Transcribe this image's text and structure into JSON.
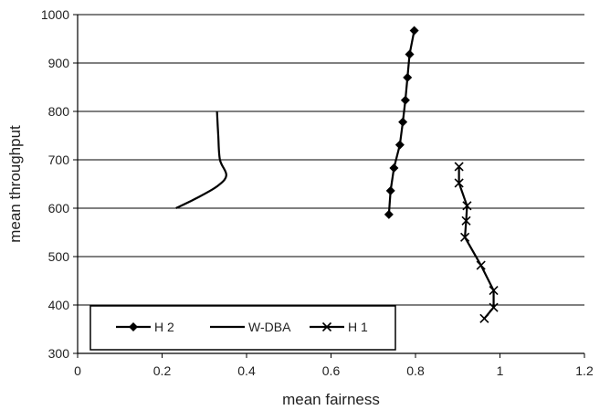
{
  "chart_data": {
    "type": "line",
    "title": "",
    "xlabel": "mean fairness",
    "ylabel": "mean throughput",
    "xlim": [
      0,
      1.2
    ],
    "ylim": [
      300,
      1000
    ],
    "x_ticks": [
      "0",
      "0.2",
      "0.4",
      "0.6",
      "0.8",
      "1",
      "1.2"
    ],
    "y_ticks": [
      "300",
      "400",
      "500",
      "600",
      "700",
      "800",
      "900",
      "1000"
    ],
    "grid": "horizontal",
    "legend_position": "bottom-left",
    "series": [
      {
        "name": "H 2",
        "marker": "diamond",
        "color": "#000000",
        "points": [
          [
            0.737,
            587
          ],
          [
            0.741,
            636
          ],
          [
            0.749,
            683
          ],
          [
            0.763,
            731
          ],
          [
            0.77,
            778
          ],
          [
            0.776,
            823
          ],
          [
            0.781,
            870
          ],
          [
            0.786,
            918
          ],
          [
            0.797,
            967
          ]
        ]
      },
      {
        "name": "W-DBA",
        "marker": "none",
        "color": "#000000",
        "points": [
          [
            0.233,
            600
          ],
          [
            0.28,
            620
          ],
          [
            0.33,
            645
          ],
          [
            0.352,
            668
          ],
          [
            0.337,
            700
          ],
          [
            0.333,
            750
          ],
          [
            0.33,
            800
          ]
        ]
      },
      {
        "name": "H 1",
        "marker": "x",
        "color": "#000000",
        "points": [
          [
            0.903,
            686
          ],
          [
            0.903,
            652
          ],
          [
            0.922,
            605
          ],
          [
            0.92,
            574
          ],
          [
            0.917,
            540
          ],
          [
            0.955,
            482
          ],
          [
            0.985,
            430
          ],
          [
            0.985,
            395
          ],
          [
            0.963,
            372
          ]
        ]
      }
    ]
  }
}
